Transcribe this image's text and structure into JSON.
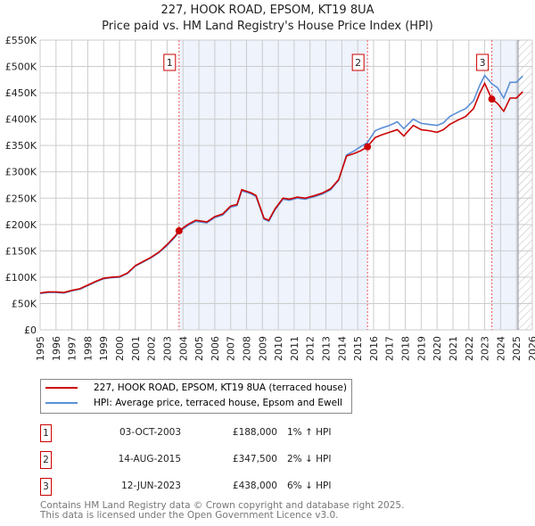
{
  "chart_data": {
    "type": "line",
    "title": "227, HOOK ROAD, EPSOM, KT19 8UA",
    "subtitle": "Price paid vs. HM Land Registry's House Price Index (HPI)",
    "xlim": [
      1995,
      2026
    ],
    "ylim": [
      0,
      550000
    ],
    "x_ticks": [
      "1995",
      "1996",
      "1997",
      "1998",
      "1999",
      "2000",
      "2001",
      "2002",
      "2003",
      "2004",
      "2005",
      "2006",
      "2007",
      "2008",
      "2009",
      "2010",
      "2011",
      "2012",
      "2013",
      "2014",
      "2015",
      "2016",
      "2017",
      "2018",
      "2019",
      "2020",
      "2021",
      "2022",
      "2023",
      "2024",
      "2025",
      "2026"
    ],
    "y_ticks": [
      {
        "v": 0,
        "label": "£0"
      },
      {
        "v": 50000,
        "label": "£50K"
      },
      {
        "v": 100000,
        "label": "£100K"
      },
      {
        "v": 150000,
        "label": "£150K"
      },
      {
        "v": 200000,
        "label": "£200K"
      },
      {
        "v": 250000,
        "label": "£250K"
      },
      {
        "v": 300000,
        "label": "£300K"
      },
      {
        "v": 350000,
        "label": "£350K"
      },
      {
        "v": 400000,
        "label": "£400K"
      },
      {
        "v": 450000,
        "label": "£450K"
      },
      {
        "v": 500000,
        "label": "£500K"
      },
      {
        "v": 550000,
        "label": "£550K"
      }
    ],
    "grid": true,
    "series": [
      {
        "name": "227, HOOK ROAD, EPSOM, KT19 8UA (terraced house)",
        "color": "#cc0000",
        "x": [
          1995,
          1995.5,
          1996,
          1996.5,
          1997,
          1997.5,
          1998,
          1998.5,
          1999,
          1999.5,
          2000,
          2000.5,
          2001,
          2001.5,
          2002,
          2002.5,
          2003,
          2003.5,
          2003.75,
          2004.3,
          2004.8,
          2005.5,
          2006,
          2006.5,
          2007,
          2007.4,
          2007.7,
          2008.3,
          2008.6,
          2009.1,
          2009.4,
          2009.8,
          2010.3,
          2010.7,
          2011.2,
          2011.7,
          2012.3,
          2012.8,
          2013.3,
          2013.8,
          2014.3,
          2014.8,
          2015.2,
          2015.6,
          2016.1,
          2016.5,
          2017,
          2017.5,
          2017.9,
          2018.5,
          2019,
          2019.5,
          2020,
          2020.4,
          2020.8,
          2021.3,
          2021.8,
          2022.3,
          2022.7,
          2023.0,
          2023.45,
          2023.8,
          2024.2,
          2024.6,
          2025,
          2025.4
        ],
        "y": [
          70000,
          72000,
          72000,
          71000,
          75000,
          78000,
          85000,
          92000,
          98000,
          100000,
          101000,
          108000,
          122000,
          130000,
          138000,
          148000,
          162000,
          178000,
          188000,
          200000,
          208000,
          205000,
          215000,
          220000,
          235000,
          238000,
          266000,
          260000,
          255000,
          212000,
          208000,
          230000,
          250000,
          248000,
          252000,
          250000,
          255000,
          260000,
          268000,
          285000,
          330000,
          335000,
          340000,
          347500,
          365000,
          370000,
          375000,
          380000,
          368000,
          388000,
          380000,
          378000,
          375000,
          380000,
          390000,
          398000,
          405000,
          420000,
          450000,
          468000,
          438000,
          430000,
          415000,
          440000,
          440000,
          452000
        ]
      },
      {
        "name": "HPI: Average price, terraced house, Epsom and Ewell",
        "color": "#5b8fd6",
        "x": [
          1995,
          1995.5,
          1996,
          1996.5,
          1997,
          1997.5,
          1998,
          1998.5,
          1999,
          1999.5,
          2000,
          2000.5,
          2001,
          2001.5,
          2002,
          2002.5,
          2003,
          2003.5,
          2003.75,
          2004.3,
          2004.8,
          2005.5,
          2006,
          2006.5,
          2007,
          2007.4,
          2007.7,
          2008.3,
          2008.6,
          2009.1,
          2009.4,
          2009.8,
          2010.3,
          2010.7,
          2011.2,
          2011.7,
          2012.3,
          2012.8,
          2013.3,
          2013.8,
          2014.3,
          2014.8,
          2015.2,
          2015.6,
          2016.1,
          2016.5,
          2017,
          2017.5,
          2017.9,
          2018.5,
          2019,
          2019.5,
          2020,
          2020.4,
          2020.8,
          2021.3,
          2021.8,
          2022.3,
          2022.7,
          2023.0,
          2023.45,
          2023.8,
          2024.2,
          2024.6,
          2025,
          2025.4
        ],
        "y": [
          69000,
          71000,
          71000,
          70000,
          74000,
          77000,
          84000,
          91000,
          97000,
          99000,
          100000,
          107000,
          121000,
          129000,
          137000,
          147000,
          160000,
          176000,
          186000,
          198000,
          206000,
          203000,
          213000,
          218000,
          233000,
          236000,
          264000,
          258000,
          253000,
          210000,
          206000,
          228000,
          248000,
          246000,
          250000,
          248000,
          253000,
          258000,
          266000,
          284000,
          332000,
          340000,
          348000,
          355000,
          378000,
          383000,
          388000,
          395000,
          382000,
          400000,
          392000,
          390000,
          388000,
          393000,
          405000,
          413000,
          420000,
          435000,
          465000,
          483000,
          467000,
          460000,
          440000,
          470000,
          470000,
          482000
        ]
      }
    ],
    "sales": [
      {
        "n": "1",
        "x": 2003.75,
        "price": 188000,
        "date": "03-OCT-2003",
        "price_label": "£188,000",
        "hpi": "1% ↑ HPI"
      },
      {
        "n": "2",
        "x": 2015.62,
        "price": 347500,
        "date": "14-AUG-2015",
        "price_label": "£347,500",
        "hpi": "2% ↓ HPI"
      },
      {
        "n": "3",
        "x": 2023.45,
        "price": 438000,
        "date": "12-JUN-2023",
        "price_label": "£438,000",
        "hpi": "6% ↓ HPI"
      }
    ],
    "hatch_from": 2025.1
  },
  "footer": {
    "line1": "Contains HM Land Registry data © Crown copyright and database right 2025.",
    "line2": "This data is licensed under the Open Government Licence v3.0."
  }
}
